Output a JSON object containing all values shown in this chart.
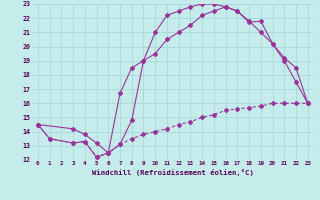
{
  "xlabel": "Windchill (Refroidissement éolien,°C)",
  "background_color": "#c5eceb",
  "grid_color": "#a8d8d8",
  "line_color": "#993399",
  "xlim": [
    -0.5,
    23.5
  ],
  "ylim": [
    12,
    23
  ],
  "xticks": [
    0,
    1,
    2,
    3,
    4,
    5,
    6,
    7,
    8,
    9,
    10,
    11,
    12,
    13,
    14,
    15,
    16,
    17,
    18,
    19,
    20,
    21,
    22,
    23
  ],
  "yticks": [
    12,
    13,
    14,
    15,
    16,
    17,
    18,
    19,
    20,
    21,
    22,
    23
  ],
  "line1_x": [
    0,
    1,
    3,
    4,
    5,
    6,
    7,
    8,
    9,
    10,
    11,
    12,
    13,
    14,
    15,
    16,
    17,
    18,
    19,
    20,
    21,
    22,
    23
  ],
  "line1_y": [
    14.5,
    13.5,
    13.2,
    13.3,
    12.2,
    12.5,
    13.1,
    14.8,
    19.0,
    21.0,
    22.2,
    22.5,
    22.8,
    23.0,
    23.0,
    22.8,
    22.5,
    21.7,
    21.8,
    20.2,
    19.0,
    17.5,
    16.0
  ],
  "line2_x": [
    0,
    3,
    4,
    5,
    6,
    7,
    8,
    9,
    10,
    11,
    12,
    13,
    14,
    15,
    16,
    17,
    18,
    19,
    20,
    21,
    22,
    23
  ],
  "line2_y": [
    14.5,
    14.2,
    13.8,
    13.2,
    12.5,
    16.7,
    18.5,
    19.0,
    19.5,
    20.5,
    21.0,
    21.5,
    22.2,
    22.5,
    22.8,
    22.5,
    21.8,
    21.0,
    20.2,
    19.2,
    18.5,
    16.0
  ],
  "line3_x": [
    0,
    1,
    3,
    4,
    5,
    6,
    7,
    8,
    9,
    10,
    11,
    12,
    13,
    14,
    15,
    16,
    17,
    18,
    19,
    20,
    21,
    22,
    23
  ],
  "line3_y": [
    14.5,
    13.5,
    13.2,
    13.3,
    12.2,
    12.5,
    13.1,
    13.5,
    13.8,
    14.0,
    14.2,
    14.5,
    14.7,
    15.0,
    15.2,
    15.5,
    15.6,
    15.7,
    15.8,
    16.0,
    16.0,
    16.0,
    16.0
  ]
}
